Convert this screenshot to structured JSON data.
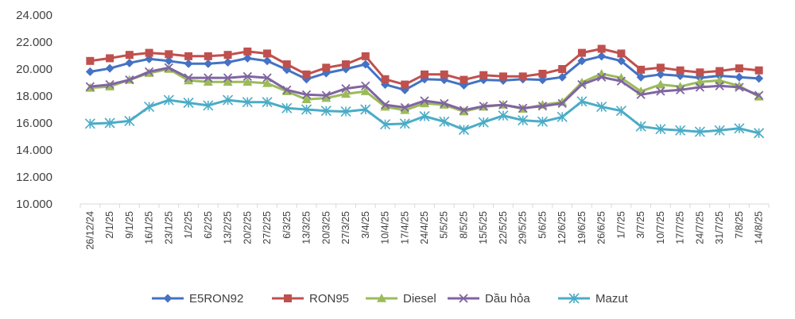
{
  "chart_data": {
    "type": "line",
    "title": "",
    "xlabel": "",
    "ylabel": "",
    "ylim": [
      10000,
      24000
    ],
    "y_ticks": [
      "10.000",
      "12.000",
      "14.000",
      "16.000",
      "18.000",
      "20.000",
      "22.000",
      "24.000"
    ],
    "grid": false,
    "legend_position": "bottom",
    "categories": [
      "26/12/24",
      "2/1/25",
      "9/1/25",
      "16/1/25",
      "23/1/25",
      "1/2/25",
      "6/2/25",
      "13/2/25",
      "20/2/25",
      "27/2/25",
      "6/3/25",
      "13/3/25",
      "20/3/25",
      "27/3/25",
      "3/4/25",
      "10/4/25",
      "17/4/25",
      "24/4/25",
      "5/5/25",
      "8/5/25",
      "15/5/25",
      "22/5/25",
      "29/5/25",
      "5/6/25",
      "12/6/25",
      "19/6/25",
      "26/6/25",
      "1/7/25",
      "3/7/25",
      "10/7/25",
      "17/7/25",
      "24/7/25",
      "31/7/25",
      "7/8/25",
      "14/8/25"
    ],
    "series": [
      {
        "name": "E5RON92",
        "color": "#4472C4",
        "marker": "diamond",
        "values": [
          19800,
          20050,
          20450,
          20750,
          20600,
          20400,
          20400,
          20500,
          20800,
          20600,
          19950,
          19250,
          19700,
          20000,
          20350,
          18850,
          18450,
          19250,
          19200,
          18800,
          19200,
          19150,
          19250,
          19200,
          19400,
          20600,
          20950,
          20600,
          19400,
          19600,
          19500,
          19350,
          19500,
          19400,
          19300
        ]
      },
      {
        "name": "RON95",
        "color": "#C0504D",
        "marker": "square",
        "values": [
          20600,
          20800,
          21050,
          21200,
          21100,
          20950,
          20950,
          21050,
          21300,
          21150,
          20350,
          19600,
          20100,
          20350,
          20950,
          19250,
          18850,
          19600,
          19600,
          19200,
          19550,
          19450,
          19450,
          19650,
          20000,
          21200,
          21500,
          21150,
          19950,
          20100,
          19900,
          19750,
          19850,
          20050,
          19900
        ]
      },
      {
        "name": "Diesel",
        "color": "#9BBB59",
        "marker": "triangle",
        "values": [
          18600,
          18700,
          19200,
          19700,
          20000,
          19150,
          19050,
          19050,
          19050,
          18950,
          18350,
          17750,
          17850,
          18150,
          18350,
          17200,
          16950,
          17450,
          17350,
          16850,
          17200,
          17350,
          17050,
          17350,
          17550,
          19000,
          19650,
          19350,
          18350,
          18850,
          18700,
          19050,
          19150,
          18750,
          17950
        ]
      },
      {
        "name": "Dầu hỏa",
        "color": "#8064A2",
        "marker": "x",
        "values": [
          18700,
          18850,
          19200,
          19800,
          20100,
          19350,
          19350,
          19350,
          19450,
          19350,
          18450,
          18100,
          18050,
          18550,
          18750,
          17350,
          17150,
          17650,
          17450,
          16950,
          17250,
          17350,
          17100,
          17250,
          17450,
          18850,
          19400,
          19100,
          18100,
          18350,
          18450,
          18650,
          18750,
          18650,
          18050
        ]
      },
      {
        "name": "Mazut",
        "color": "#4BACC6",
        "marker": "star",
        "values": [
          15950,
          16000,
          16150,
          17200,
          17700,
          17500,
          17300,
          17700,
          17550,
          17550,
          17100,
          17000,
          16900,
          16850,
          17000,
          15900,
          15950,
          16500,
          16100,
          15500,
          16050,
          16550,
          16200,
          16100,
          16450,
          17600,
          17200,
          16900,
          15750,
          15550,
          15450,
          15350,
          15450,
          15600,
          15250
        ]
      }
    ]
  }
}
